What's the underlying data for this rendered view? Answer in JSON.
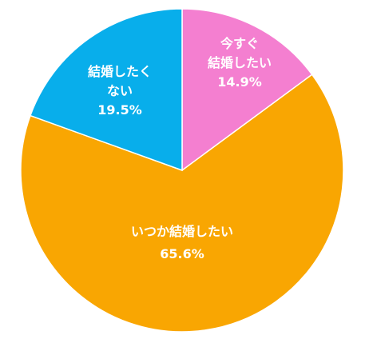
{
  "chart_data": {
    "type": "pie",
    "title": "",
    "start_angle_deg": 0,
    "direction": "clockwise",
    "slices": [
      {
        "label_lines": [
          "今すぐ",
          "結婚したい"
        ],
        "value_label": "14.9%",
        "value": 14.9,
        "color": "#F47FD0"
      },
      {
        "label_lines": [
          "いつか結婚したい"
        ],
        "value_label": "65.6%",
        "value": 65.6,
        "color": "#F9A602"
      },
      {
        "label_lines": [
          "結婚したく",
          "ない"
        ],
        "value_label": "19.5%",
        "value": 19.5,
        "color": "#08AEEB"
      }
    ]
  }
}
